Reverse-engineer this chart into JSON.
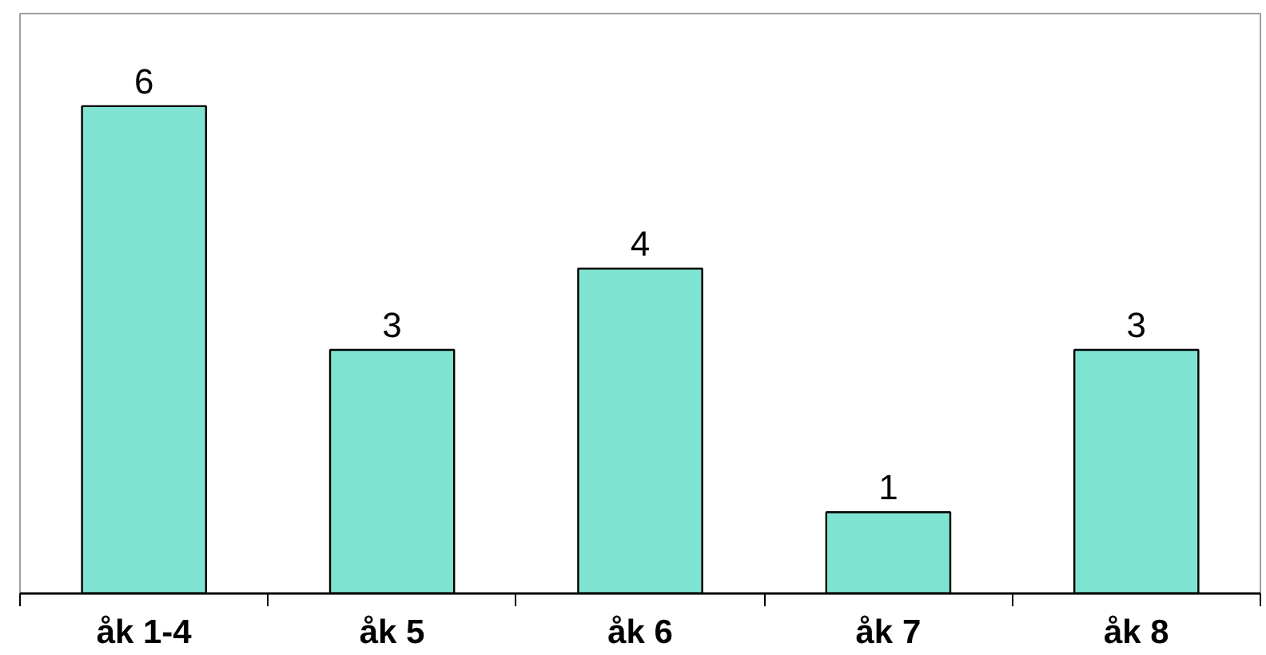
{
  "chart_data": {
    "type": "bar",
    "categories": [
      "åk 1-4",
      "åk 5",
      "åk 6",
      "åk 7",
      "åk 8"
    ],
    "values": [
      6,
      3,
      4,
      1,
      3
    ],
    "color": "#7fe3d2",
    "data_labels": true
  }
}
